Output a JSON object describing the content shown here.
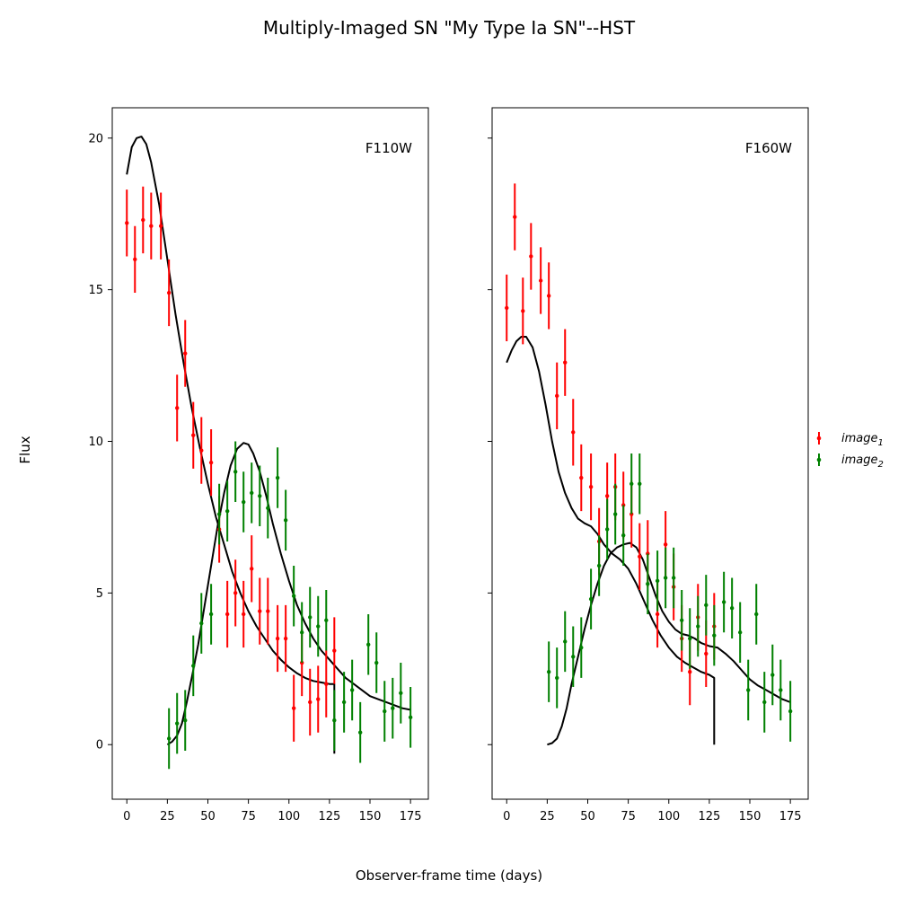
{
  "figure": {
    "title": "Multiply-Imaged SN \"My Type Ia SN\"--HST",
    "xlabel": "Observer-frame time (days)",
    "ylabel": "Flux"
  },
  "legend": {
    "placement": "right",
    "entries": [
      {
        "label": "image",
        "sub": "1",
        "color": "#ff0000"
      },
      {
        "label": "image",
        "sub": "2",
        "color": "#008000"
      }
    ]
  },
  "chart_data": [
    {
      "type": "scatter",
      "band": "F110W",
      "xlim": [
        -9,
        186
      ],
      "ylim": [
        -1.8,
        21
      ],
      "xticks": [
        0,
        25,
        50,
        75,
        100,
        125,
        150,
        175
      ],
      "yticks": [
        0,
        5,
        10,
        15,
        20
      ],
      "grid": false,
      "series": [
        {
          "name": "image_1",
          "color": "#ff0000",
          "yerr": 1.1,
          "points": [
            [
              0,
              17.2
            ],
            [
              5,
              16.0
            ],
            [
              10,
              17.3
            ],
            [
              15,
              17.1
            ],
            [
              21,
              17.1
            ],
            [
              26,
              14.9
            ],
            [
              31,
              11.1
            ],
            [
              36,
              12.9
            ],
            [
              41,
              10.2
            ],
            [
              46,
              9.7
            ],
            [
              52,
              9.3
            ],
            [
              57,
              7.1
            ],
            [
              62,
              4.3
            ],
            [
              67,
              5.0
            ],
            [
              72,
              4.3
            ],
            [
              77,
              5.8
            ],
            [
              82,
              4.4
            ],
            [
              87,
              4.4
            ],
            [
              93,
              3.5
            ],
            [
              98,
              3.5
            ],
            [
              103,
              1.2
            ],
            [
              108,
              2.7
            ],
            [
              113,
              1.4
            ],
            [
              118,
              1.5
            ],
            [
              123,
              2.0
            ],
            [
              128,
              3.1
            ]
          ]
        },
        {
          "name": "image_2",
          "color": "#008000",
          "yerr": 1.0,
          "points": [
            [
              26,
              0.2
            ],
            [
              31,
              0.7
            ],
            [
              36,
              0.8
            ],
            [
              41,
              2.6
            ],
            [
              46,
              4.0
            ],
            [
              52,
              4.3
            ],
            [
              57,
              7.6
            ],
            [
              62,
              7.7
            ],
            [
              67,
              9.0
            ],
            [
              72,
              8.0
            ],
            [
              77,
              8.3
            ],
            [
              82,
              8.2
            ],
            [
              87,
              7.8
            ],
            [
              93,
              8.8
            ],
            [
              98,
              7.4
            ],
            [
              103,
              4.9
            ],
            [
              108,
              3.7
            ],
            [
              113,
              4.2
            ],
            [
              118,
              3.9
            ],
            [
              123,
              4.1
            ],
            [
              128,
              0.8
            ],
            [
              134,
              1.4
            ],
            [
              139,
              1.8
            ],
            [
              144,
              0.4
            ],
            [
              149,
              3.3
            ],
            [
              154,
              2.7
            ],
            [
              159,
              1.1
            ],
            [
              164,
              1.2
            ],
            [
              169,
              1.7
            ],
            [
              175,
              0.9
            ]
          ]
        }
      ],
      "model_curves": [
        [
          [
            0,
            18.8
          ],
          [
            3,
            19.7
          ],
          [
            6,
            20.0
          ],
          [
            9,
            20.05
          ],
          [
            12,
            19.8
          ],
          [
            15,
            19.2
          ],
          [
            20,
            17.8
          ],
          [
            25,
            16.0
          ],
          [
            30,
            14.2
          ],
          [
            35,
            12.6
          ],
          [
            40,
            11.1
          ],
          [
            45,
            9.8
          ],
          [
            50,
            8.6
          ],
          [
            55,
            7.5
          ],
          [
            60,
            6.6
          ],
          [
            65,
            5.7
          ],
          [
            70,
            5.0
          ],
          [
            75,
            4.4
          ],
          [
            80,
            3.9
          ],
          [
            85,
            3.5
          ],
          [
            90,
            3.1
          ],
          [
            95,
            2.8
          ],
          [
            100,
            2.55
          ],
          [
            105,
            2.35
          ],
          [
            110,
            2.2
          ],
          [
            115,
            2.1
          ],
          [
            120,
            2.05
          ],
          [
            125,
            2.0
          ],
          [
            128,
            2.0
          ],
          [
            128,
            -0.3
          ]
        ],
        [
          [
            25,
            0.0
          ],
          [
            28,
            0.1
          ],
          [
            31,
            0.3
          ],
          [
            34,
            0.7
          ],
          [
            37,
            1.4
          ],
          [
            40,
            2.2
          ],
          [
            44,
            3.3
          ],
          [
            48,
            4.6
          ],
          [
            52,
            5.9
          ],
          [
            56,
            7.2
          ],
          [
            60,
            8.3
          ],
          [
            64,
            9.2
          ],
          [
            68,
            9.75
          ],
          [
            72,
            9.95
          ],
          [
            75,
            9.9
          ],
          [
            78,
            9.6
          ],
          [
            82,
            9.0
          ],
          [
            86,
            8.2
          ],
          [
            90,
            7.3
          ],
          [
            95,
            6.3
          ],
          [
            100,
            5.4
          ],
          [
            105,
            4.6
          ],
          [
            110,
            4.0
          ],
          [
            115,
            3.5
          ],
          [
            120,
            3.1
          ],
          [
            125,
            2.8
          ],
          [
            130,
            2.5
          ],
          [
            135,
            2.2
          ],
          [
            140,
            2.0
          ],
          [
            145,
            1.8
          ],
          [
            150,
            1.6
          ],
          [
            155,
            1.5
          ],
          [
            160,
            1.4
          ],
          [
            165,
            1.3
          ],
          [
            170,
            1.2
          ],
          [
            175,
            1.15
          ]
        ]
      ]
    },
    {
      "type": "scatter",
      "band": "F160W",
      "xlim": [
        -9,
        186
      ],
      "ylim": [
        -1.8,
        21
      ],
      "xticks": [
        0,
        25,
        50,
        75,
        100,
        125,
        150,
        175
      ],
      "yticks": [
        0,
        5,
        10,
        15,
        20
      ],
      "grid": false,
      "series": [
        {
          "name": "image_1",
          "color": "#ff0000",
          "yerr": 1.1,
          "points": [
            [
              0,
              14.4
            ],
            [
              5,
              17.4
            ],
            [
              10,
              14.3
            ],
            [
              15,
              16.1
            ],
            [
              21,
              15.3
            ],
            [
              26,
              14.8
            ],
            [
              31,
              11.5
            ],
            [
              36,
              12.6
            ],
            [
              41,
              10.3
            ],
            [
              46,
              8.8
            ],
            [
              52,
              8.5
            ],
            [
              57,
              6.7
            ],
            [
              62,
              8.2
            ],
            [
              67,
              8.5
            ],
            [
              72,
              7.9
            ],
            [
              77,
              7.6
            ],
            [
              82,
              6.2
            ],
            [
              87,
              6.3
            ],
            [
              93,
              4.3
            ],
            [
              98,
              6.6
            ],
            [
              103,
              5.2
            ],
            [
              108,
              3.5
            ],
            [
              113,
              2.4
            ],
            [
              118,
              4.2
            ],
            [
              123,
              3.0
            ],
            [
              128,
              3.9
            ]
          ]
        },
        {
          "name": "image_2",
          "color": "#008000",
          "yerr": 1.0,
          "points": [
            [
              26,
              2.4
            ],
            [
              31,
              2.2
            ],
            [
              36,
              3.4
            ],
            [
              41,
              2.9
            ],
            [
              46,
              3.2
            ],
            [
              52,
              4.8
            ],
            [
              57,
              5.9
            ],
            [
              62,
              7.1
            ],
            [
              67,
              7.6
            ],
            [
              72,
              6.9
            ],
            [
              77,
              8.6
            ],
            [
              82,
              8.6
            ],
            [
              87,
              5.3
            ],
            [
              93,
              5.4
            ],
            [
              98,
              5.5
            ],
            [
              103,
              5.5
            ],
            [
              108,
              4.1
            ],
            [
              113,
              3.5
            ],
            [
              118,
              3.9
            ],
            [
              123,
              4.6
            ],
            [
              128,
              3.6
            ],
            [
              134,
              4.7
            ],
            [
              139,
              4.5
            ],
            [
              144,
              3.7
            ],
            [
              149,
              1.8
            ],
            [
              154,
              4.3
            ],
            [
              159,
              1.4
            ],
            [
              164,
              2.3
            ],
            [
              169,
              1.8
            ],
            [
              175,
              1.1
            ]
          ]
        }
      ],
      "model_curves": [
        [
          [
            0,
            12.6
          ],
          [
            3,
            13.0
          ],
          [
            6,
            13.3
          ],
          [
            9,
            13.45
          ],
          [
            12,
            13.45
          ],
          [
            16,
            13.1
          ],
          [
            20,
            12.3
          ],
          [
            24,
            11.2
          ],
          [
            28,
            10.0
          ],
          [
            32,
            9.0
          ],
          [
            36,
            8.3
          ],
          [
            40,
            7.8
          ],
          [
            44,
            7.45
          ],
          [
            48,
            7.3
          ],
          [
            52,
            7.2
          ],
          [
            56,
            6.95
          ],
          [
            60,
            6.6
          ],
          [
            65,
            6.3
          ],
          [
            70,
            6.1
          ],
          [
            75,
            5.8
          ],
          [
            80,
            5.3
          ],
          [
            85,
            4.7
          ],
          [
            90,
            4.1
          ],
          [
            95,
            3.6
          ],
          [
            100,
            3.2
          ],
          [
            105,
            2.9
          ],
          [
            110,
            2.7
          ],
          [
            115,
            2.55
          ],
          [
            120,
            2.4
          ],
          [
            125,
            2.3
          ],
          [
            128,
            2.2
          ],
          [
            128,
            0.0
          ]
        ],
        [
          [
            25,
            0.0
          ],
          [
            28,
            0.05
          ],
          [
            31,
            0.2
          ],
          [
            34,
            0.6
          ],
          [
            37,
            1.2
          ],
          [
            40,
            2.0
          ],
          [
            44,
            2.9
          ],
          [
            48,
            3.8
          ],
          [
            52,
            4.6
          ],
          [
            56,
            5.3
          ],
          [
            60,
            5.9
          ],
          [
            64,
            6.3
          ],
          [
            68,
            6.5
          ],
          [
            72,
            6.6
          ],
          [
            76,
            6.65
          ],
          [
            80,
            6.5
          ],
          [
            84,
            6.1
          ],
          [
            88,
            5.5
          ],
          [
            92,
            4.9
          ],
          [
            96,
            4.4
          ],
          [
            100,
            4.05
          ],
          [
            104,
            3.8
          ],
          [
            108,
            3.65
          ],
          [
            112,
            3.6
          ],
          [
            116,
            3.5
          ],
          [
            120,
            3.35
          ],
          [
            125,
            3.25
          ],
          [
            130,
            3.2
          ],
          [
            135,
            3.0
          ],
          [
            140,
            2.75
          ],
          [
            145,
            2.45
          ],
          [
            150,
            2.15
          ],
          [
            155,
            1.95
          ],
          [
            160,
            1.8
          ],
          [
            165,
            1.65
          ],
          [
            170,
            1.5
          ],
          [
            175,
            1.4
          ]
        ]
      ]
    }
  ]
}
